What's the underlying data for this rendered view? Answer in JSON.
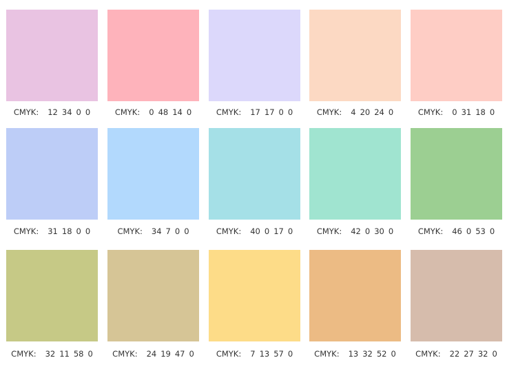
{
  "swatches": [
    {
      "color": "#e9c3e2",
      "label": "CMYK:",
      "cmyk": [
        12,
        34,
        0,
        0
      ]
    },
    {
      "color": "#feb3bb",
      "label": "CMYK:",
      "cmyk": [
        0,
        48,
        14,
        0
      ]
    },
    {
      "color": "#dcd8fb",
      "label": "CMYK:",
      "cmyk": [
        17,
        17,
        0,
        0
      ]
    },
    {
      "color": "#fcd9c3",
      "label": "CMYK:",
      "cmyk": [
        4,
        20,
        24,
        0
      ]
    },
    {
      "color": "#fecdc5",
      "label": "CMYK:",
      "cmyk": [
        0,
        31,
        18,
        0
      ]
    },
    {
      "color": "#bdcdf7",
      "label": "CMYK:",
      "cmyk": [
        31,
        18,
        0,
        0
      ]
    },
    {
      "color": "#b2d9fd",
      "label": "CMYK:",
      "cmyk": [
        34,
        7,
        0,
        0
      ]
    },
    {
      "color": "#a5e0e7",
      "label": "CMYK:",
      "cmyk": [
        40,
        0,
        17,
        0
      ]
    },
    {
      "color": "#a0e4d0",
      "label": "CMYK:",
      "cmyk": [
        42,
        0,
        30,
        0
      ]
    },
    {
      "color": "#9ccf92",
      "label": "CMYK:",
      "cmyk": [
        46,
        0,
        53,
        0
      ]
    },
    {
      "color": "#c6c986",
      "label": "CMYK:",
      "cmyk": [
        32,
        11,
        58,
        0
      ]
    },
    {
      "color": "#d6c596",
      "label": "CMYK:",
      "cmyk": [
        24,
        19,
        47,
        0
      ]
    },
    {
      "color": "#fddc88",
      "label": "CMYK:",
      "cmyk": [
        7,
        13,
        57,
        0
      ]
    },
    {
      "color": "#ecbb84",
      "label": "CMYK:",
      "cmyk": [
        13,
        32,
        52,
        0
      ]
    },
    {
      "color": "#d6bcac",
      "label": "CMYK:",
      "cmyk": [
        22,
        27,
        32,
        0
      ]
    }
  ]
}
